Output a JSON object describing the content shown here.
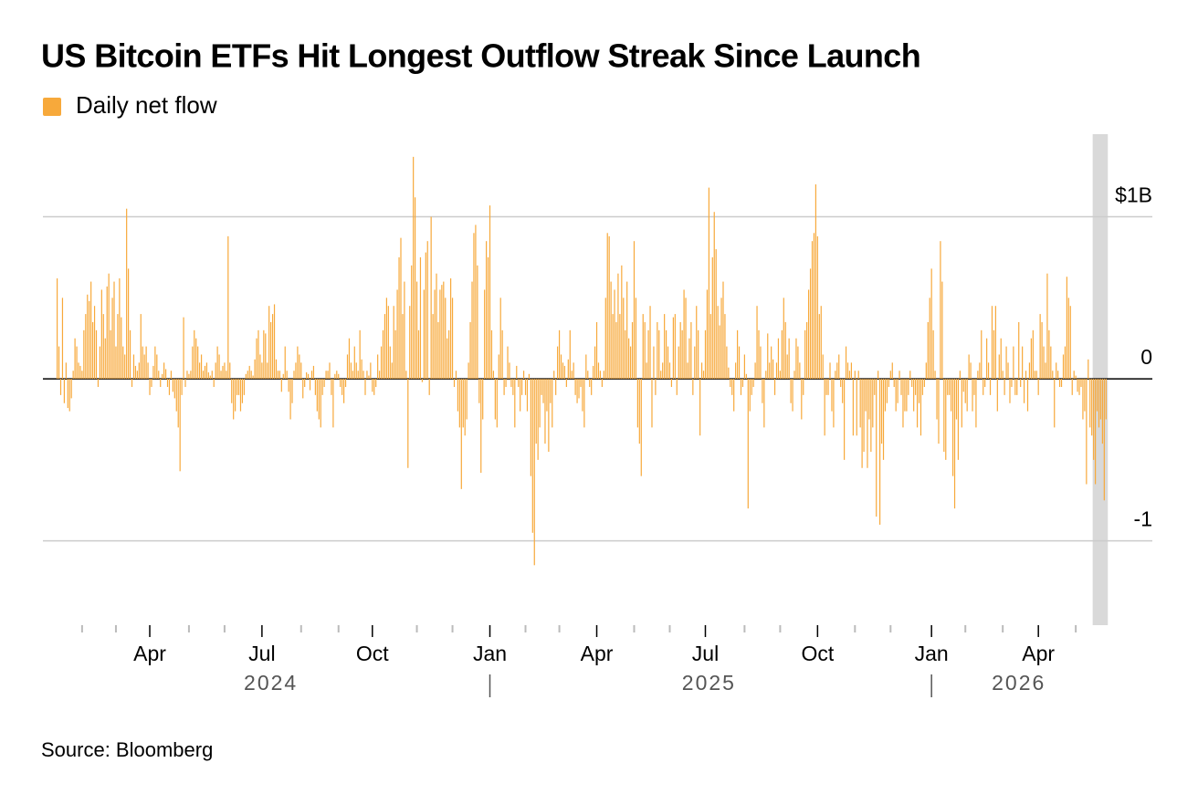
{
  "chart_data": {
    "type": "bar",
    "title": "US Bitcoin ETFs Hit Longest Outflow Streak Since Launch",
    "series": [
      {
        "name": "Daily net flow",
        "color": "#f7a93b",
        "values": [
          0.62,
          0.2,
          -0.1,
          0.5,
          -0.15,
          0.1,
          -0.18,
          -0.2,
          -0.12,
          0.05,
          0.25,
          0.2,
          0.1,
          0.08,
          0.05,
          0.3,
          0.4,
          0.52,
          0.48,
          0.6,
          0.35,
          0.45,
          0.3,
          -0.05,
          0.2,
          0.55,
          0.4,
          0.25,
          0.57,
          0.65,
          0.3,
          0.5,
          0.6,
          0.2,
          0.4,
          0.62,
          0.38,
          0.2,
          0.15,
          1.05,
          0.68,
          0.3,
          -0.05,
          0.15,
          0.08,
          0.05,
          0.1,
          0.4,
          0.2,
          0.15,
          0.2,
          0.1,
          -0.1,
          -0.05,
          0.08,
          0.2,
          0.15,
          0.05,
          -0.05,
          0.03,
          0.1,
          0.06,
          -0.05,
          -0.1,
          0.05,
          -0.08,
          -0.12,
          -0.2,
          -0.3,
          -0.57,
          -0.1,
          0.38,
          -0.05,
          0.05,
          0.03,
          0.05,
          0.2,
          0.3,
          0.25,
          0.2,
          0.1,
          0.15,
          0.05,
          0.08,
          0.1,
          0.04,
          0.02,
          0.05,
          -0.05,
          0.1,
          0.2,
          0.15,
          0.05,
          0.08,
          0.1,
          0.05,
          0.88,
          0.1,
          -0.15,
          -0.25,
          -0.2,
          -0.1,
          -0.1,
          -0.2,
          -0.15,
          -0.1,
          0.03,
          0.05,
          0.08,
          0.05,
          0.02,
          0.12,
          0.25,
          0.3,
          0.15,
          0.1,
          0.3,
          0.28,
          0.1,
          0.45,
          0.35,
          0.4,
          0.46,
          0.12,
          0.05,
          0.05,
          -0.08,
          0.03,
          0.2,
          0.05,
          -0.08,
          -0.25,
          -0.15,
          0.05,
          0.1,
          0.2,
          0.15,
          0.1,
          -0.12,
          -0.05,
          0.04,
          0.03,
          -0.07,
          0.05,
          0.08,
          -0.1,
          -0.2,
          -0.25,
          -0.3,
          -0.1,
          -0.05,
          0.05,
          0.05,
          0.1,
          -0.1,
          -0.3,
          0.03,
          0.05,
          0.03,
          -0.05,
          -0.1,
          -0.15,
          -0.05,
          0.15,
          0.25,
          0.1,
          0.05,
          0.2,
          0.1,
          0.05,
          0.3,
          0.12,
          0.05,
          -0.1,
          0.05,
          0.02,
          0.1,
          -0.08,
          -0.1,
          -0.05,
          0.15,
          0.05,
          0.2,
          0.3,
          0.4,
          0.5,
          0.45,
          0.2,
          0.1,
          0.45,
          0.3,
          0.55,
          0.75,
          0.87,
          0.4,
          0.6,
          0.05,
          -0.55,
          0.45,
          0.7,
          1.37,
          1.12,
          0.6,
          0.3,
          0.75,
          -0.02,
          0.55,
          0.78,
          0.85,
          -0.1,
          1.0,
          0.4,
          0.55,
          0.65,
          0.35,
          0.55,
          0.58,
          0.6,
          0.5,
          0.25,
          0.3,
          0.62,
          0.5,
          -0.05,
          0.05,
          -0.2,
          -0.3,
          -0.68,
          -0.3,
          -0.35,
          -0.25,
          0.1,
          0.35,
          0.6,
          0.9,
          0.95,
          0.7,
          -0.15,
          -0.58,
          -0.25,
          0.55,
          0.85,
          0.75,
          1.07,
          0.3,
          0.05,
          -0.25,
          -0.3,
          0.15,
          0.5,
          0.3,
          -0.1,
          -0.05,
          0.2,
          0.1,
          -0.05,
          -0.1,
          -0.3,
          0.08,
          -0.05,
          -0.2,
          -0.1,
          0.05,
          -0.1,
          -0.2,
          0.03,
          -0.6,
          -0.95,
          -1.15,
          -0.4,
          -0.5,
          -0.3,
          -0.1,
          -0.15,
          -0.4,
          -0.2,
          -0.45,
          -0.15,
          -0.3,
          0.05,
          -0.1,
          0.2,
          0.3,
          0.15,
          0.1,
          0.08,
          -0.05,
          0.12,
          0.3,
          0.05,
          0.1,
          -0.1,
          -0.15,
          -0.12,
          -0.05,
          -0.2,
          -0.3,
          0.15,
          0.05,
          -0.05,
          -0.1,
          0.08,
          0.2,
          0.35,
          0.1,
          0.05,
          -0.05,
          0.05,
          0.5,
          0.9,
          0.88,
          0.6,
          0.4,
          0.55,
          0.35,
          0.65,
          0.4,
          0.7,
          0.5,
          0.3,
          0.6,
          0.25,
          0.2,
          0.35,
          0.85,
          0.5,
          -0.3,
          -0.4,
          -0.6,
          0.4,
          0.35,
          0.1,
          0.3,
          0.45,
          -0.3,
          0.2,
          -0.1,
          0.35,
          0.3,
          0.05,
          0.1,
          0.4,
          0.3,
          0.2,
          0.1,
          -0.05,
          0.38,
          0.4,
          -0.1,
          0.2,
          0.35,
          0.3,
          0.55,
          0.5,
          0.1,
          0.25,
          0.35,
          -0.1,
          0.2,
          0.45,
          0.3,
          -0.35,
          0.1,
          0.05,
          0.3,
          0.55,
          1.18,
          0.4,
          0.75,
          1.03,
          0.8,
          0.45,
          0.33,
          0.5,
          0.6,
          0.4,
          0.2,
          0.07,
          -0.05,
          -0.1,
          -0.2,
          0.1,
          0.3,
          0.2,
          -0.1,
          -0.05,
          0.15,
          0.03,
          -0.8,
          -0.2,
          -0.1,
          -0.05,
          0.1,
          0.45,
          0.3,
          0.2,
          -0.15,
          -0.3,
          0.05,
          0.28,
          0.1,
          0.2,
          0.12,
          -0.1,
          0.1,
          0.25,
          0.05,
          0.3,
          0.5,
          0.35,
          0.15,
          0.25,
          -0.15,
          -0.2,
          0.05,
          0.25,
          0.2,
          0.1,
          -0.25,
          -0.1,
          0.3,
          0.35,
          0.55,
          0.68,
          0.85,
          0.9,
          1.2,
          0.88,
          0.4,
          0.45,
          0.15,
          -0.35,
          -0.1,
          -0.1,
          0.1,
          -0.2,
          -0.3,
          0.05,
          0.1,
          0.15,
          -0.05,
          -0.15,
          -0.5,
          0.2,
          0.1,
          0.05,
          0.1,
          -0.35,
          0.05,
          -0.35,
          0.05,
          -0.3,
          -0.55,
          -0.45,
          -0.2,
          -0.55,
          -0.25,
          -0.45,
          -0.3,
          -0.1,
          -0.85,
          0.05,
          -0.9,
          -0.4,
          -0.5,
          -0.2,
          -0.15,
          -0.05,
          0.05,
          0.1,
          -0.05,
          -0.2,
          -0.15,
          0.05,
          -0.1,
          -0.3,
          -0.2,
          -0.2,
          -0.1,
          0.05,
          -0.05,
          -0.2,
          -0.1,
          -0.3,
          -0.15,
          -0.35,
          -0.1,
          -0.05,
          0.1,
          0.35,
          0.5,
          0.68,
          0.3,
          0.05,
          -0.25,
          -0.4,
          0.85,
          0.6,
          -0.45,
          -0.5,
          -0.1,
          -0.1,
          -0.2,
          -0.6,
          -0.8,
          -0.25,
          -0.5,
          0.05,
          -0.3,
          -0.08,
          -0.15,
          -0.2,
          0.15,
          0.1,
          -0.2,
          -0.1,
          -0.3,
          0.05,
          0.1,
          0.3,
          -0.1,
          -0.05,
          0.25,
          0.1,
          -0.1,
          0.45,
          0.3,
          0.45,
          -0.2,
          0.15,
          0.25,
          0.05,
          -0.1,
          0.2,
          0.1,
          -0.15,
          -0.05,
          0.2,
          -0.1,
          -0.1,
          0.35,
          -0.05,
          0.2,
          -0.15,
          0.05,
          -0.2,
          0.1,
          0.25,
          0.3,
          0.05,
          0.05,
          -0.1,
          0.4,
          0.35,
          0.2,
          0.1,
          0.65,
          0.3,
          0.2,
          0.05,
          -0.3,
          0.1,
          0.05,
          -0.05,
          -0.05,
          0.15,
          0.2,
          0.63,
          0.5,
          0.45,
          -0.1,
          0.05,
          0.02,
          -0.08,
          -0.1,
          -0.05,
          -0.25,
          -0.2,
          -0.65,
          0.12,
          -0.3,
          -0.35,
          -0.5,
          -0.65,
          -0.2,
          -0.3,
          -0.25,
          -0.4,
          -0.75,
          -0.25
        ]
      }
    ],
    "xlim": [
      -8,
      615
    ],
    "xticks": [
      {
        "value": 52,
        "label": "Apr"
      },
      {
        "value": 115,
        "label": "Jul"
      },
      {
        "value": 177,
        "label": "Oct"
      },
      {
        "value": 243,
        "label": "Jan"
      },
      {
        "value": 303,
        "label": "Apr"
      },
      {
        "value": 364,
        "label": "Jul"
      },
      {
        "value": 427,
        "label": "Oct"
      },
      {
        "value": 491,
        "label": "Jan"
      },
      {
        "value": 551,
        "label": "Apr"
      }
    ],
    "xminor_ticks": [
      14,
      33,
      74,
      94,
      137,
      158,
      202,
      222,
      263,
      282,
      324,
      344,
      386,
      406,
      448,
      468,
      510,
      531,
      572
    ],
    "year_labels": [
      {
        "value": 120,
        "label": "2024"
      },
      {
        "value": 366,
        "label": "2025"
      },
      {
        "value": 540,
        "label": "2026"
      }
    ],
    "year_separators": [
      243,
      491
    ],
    "highlight_x": [
      581.5,
      590
    ],
    "ylim": [
      -1.52,
      1.51
    ],
    "yticks": [
      {
        "value": 1,
        "label": "$1B"
      },
      0,
      -1
    ],
    "grid": true,
    "source": "Source: Bloomberg"
  }
}
